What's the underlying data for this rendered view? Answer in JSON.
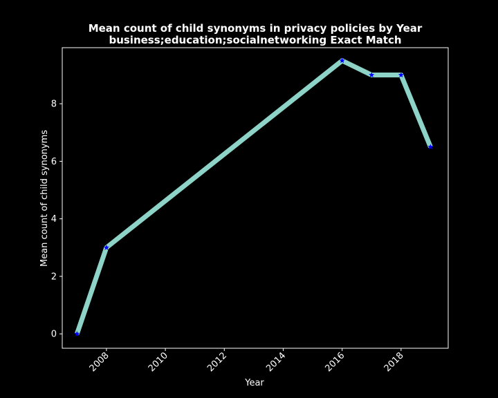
{
  "chart_data": {
    "type": "line",
    "title_line1": "Mean count of child synonyms in privacy policies by Year",
    "title_line2": "business;education;socialnetworking Exact Match",
    "xlabel": "Year",
    "ylabel": "Mean count of child synonyms",
    "x": [
      2007,
      2008,
      2016,
      2017,
      2018,
      2019
    ],
    "series": [
      {
        "values": [
          0,
          3,
          9.5,
          9,
          9,
          6.5
        ]
      }
    ],
    "xlim": [
      2006.5,
      2019.6
    ],
    "ylim": [
      -0.5,
      9.95
    ],
    "xticks": [
      2008,
      2010,
      2012,
      2014,
      2016,
      2018
    ],
    "yticks": [
      0,
      2,
      4,
      6,
      8
    ],
    "line_color": "#8dd3c7",
    "marker_color": "#0000ff",
    "marker": "star",
    "background": "#000000",
    "foreground": "#ffffff",
    "grid": false,
    "legend": "none"
  }
}
